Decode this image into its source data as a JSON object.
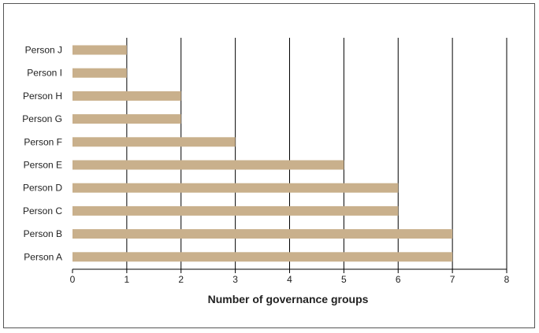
{
  "chart_data": {
    "type": "bar",
    "orientation": "horizontal",
    "categories": [
      "Person J",
      "Person I",
      "Person H",
      "Person G",
      "Person F",
      "Person E",
      "Person D",
      "Person C",
      "Person B",
      "Person A"
    ],
    "values": [
      1,
      1,
      2,
      2,
      3,
      5,
      6,
      6,
      7,
      7
    ],
    "xlabel": "Number of governance groups",
    "ylabel": "",
    "xlim": [
      0,
      8
    ],
    "xticks": [
      0,
      1,
      2,
      3,
      4,
      5,
      6,
      7,
      8
    ],
    "grid": "vertical",
    "bar_color": "#c9b08c",
    "grid_color": "#000000"
  }
}
